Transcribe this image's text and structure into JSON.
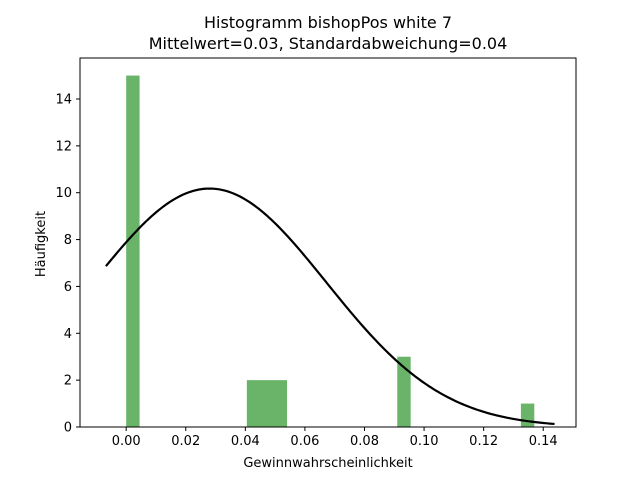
{
  "chart_data": {
    "type": "bar",
    "title": "Histogramm bishopPos white 7",
    "subtitle": "Mittelwert=0.03, Standardabweichung=0.04",
    "xlabel": "Gewinnwahrscheinlichkeit",
    "ylabel": "Häufigkeit",
    "xlim": [
      -0.0155,
      0.151
    ],
    "ylim": [
      0,
      15.75
    ],
    "x_ticks": [
      "0.00",
      "0.02",
      "0.04",
      "0.06",
      "0.08",
      "0.10",
      "0.12",
      "0.14"
    ],
    "y_ticks": [
      "0",
      "2",
      "4",
      "6",
      "8",
      "10",
      "12",
      "14"
    ],
    "bar_color": "#6ab46a",
    "curve_color": "#000000",
    "bins": [
      {
        "x0": 0.0,
        "x1": 0.0045,
        "count": 15
      },
      {
        "x0": 0.0405,
        "x1": 0.054,
        "count": 2
      },
      {
        "x0": 0.091,
        "x1": 0.0955,
        "count": 3
      },
      {
        "x0": 0.1325,
        "x1": 0.137,
        "count": 1
      }
    ],
    "curve": {
      "type": "normal_pdf",
      "mean": 0.028,
      "std": 0.0392,
      "x_range": [
        -0.0068,
        0.1438
      ]
    },
    "grid": false,
    "legend": "none"
  }
}
